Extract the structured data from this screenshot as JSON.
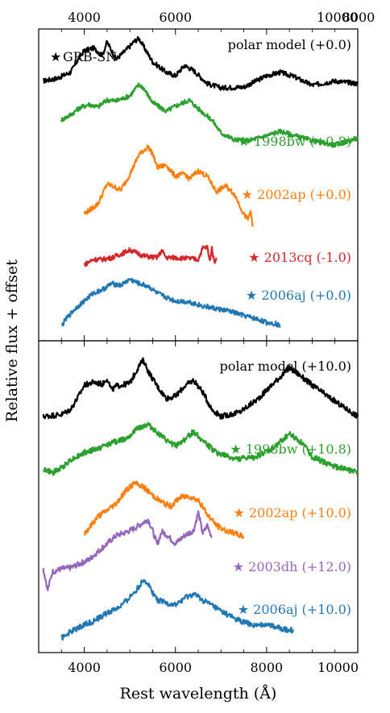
{
  "chart_data": {
    "type": "line",
    "xlabel": "Rest wavelength (Å)",
    "ylabel": "Relative flux + offset",
    "xlim": [
      3000,
      10000
    ],
    "xticks": [
      4000,
      6000,
      8000,
      10000
    ],
    "top_axis_ticks": true,
    "grid": false,
    "legend": {
      "text": "GRB-SN",
      "marker": "★",
      "placement": "top-left"
    },
    "panels": [
      {
        "position": "top",
        "series": [
          {
            "name": "polar model (+0.0)",
            "color": "#000000",
            "x": [
              3100,
              3400,
              3700,
              3900,
              4000,
              4200,
              4400,
              4500,
              4700,
              5000,
              5100,
              5200,
              5300,
              5500,
              5800,
              6000,
              6200,
              6400,
              6700,
              7000,
              7500,
              8000,
              8300,
              8600,
              9000,
              9500,
              10000
            ],
            "y": [
              0.0,
              0.3,
              1.0,
              2.8,
              3.5,
              3.8,
              3.0,
              4.5,
              2.5,
              4.0,
              4.6,
              4.9,
              4.0,
              2.2,
              1.0,
              0.6,
              1.8,
              1.2,
              -0.3,
              -0.8,
              -0.7,
              0.6,
              1.0,
              0.5,
              -0.5,
              0.0,
              -0.3
            ]
          },
          {
            "name": "1998bw (+0.8)",
            "color": "#2ca02c",
            "x": [
              3500,
              3700,
              3900,
              4100,
              4300,
              4500,
              4700,
              5000,
              5200,
              5300,
              5500,
              5800,
              6000,
              6300,
              6500,
              6800,
              7000,
              7300,
              7600,
              8000,
              8300,
              8600,
              9000,
              9500,
              10000
            ],
            "y": [
              -4.5,
              -3.9,
              -3.1,
              -2.7,
              -3.0,
              -2.2,
              -2.3,
              -1.7,
              -0.4,
              -0.8,
              -2.5,
              -3.5,
              -2.9,
              -2.2,
              -3.2,
              -4.5,
              -6.0,
              -6.8,
              -6.9,
              -6.3,
              -5.8,
              -6.3,
              -6.9,
              -7.4,
              -6.6
            ]
          },
          {
            "name": "2002ap (+0.0)",
            "color": "#ff7f0e",
            "x": [
              4000,
              4150,
              4300,
              4500,
              4600,
              4800,
              5000,
              5200,
              5400,
              5500,
              5600,
              5800,
              5900,
              6000,
              6200,
              6300,
              6500,
              6700,
              6900,
              7100,
              7300,
              7500,
              7600,
              7650,
              7700
            ],
            "y": [
              -15.3,
              -14.8,
              -14.2,
              -11.9,
              -12.1,
              -12.6,
              -10.8,
              -8.5,
              -7.6,
              -8.4,
              -10.0,
              -9.7,
              -10.4,
              -11.0,
              -10.7,
              -11.3,
              -10.4,
              -11.0,
              -12.8,
              -12.1,
              -13.1,
              -15.4,
              -16.0,
              -15.0,
              -16.8
            ]
          },
          {
            "name": "2013cq (-1.0)",
            "color": "#d62728",
            "x": [
              4000,
              4200,
              4400,
              4600,
              4800,
              5000,
              5300,
              5600,
              5700,
              5800,
              6000,
              6300,
              6500,
              6600,
              6700,
              6750,
              6800,
              6850,
              6900
            ],
            "y": [
              -21.2,
              -20.6,
              -20.6,
              -20.4,
              -20.0,
              -19.5,
              -20.2,
              -20.4,
              -19.6,
              -20.4,
              -20.4,
              -20.5,
              -20.6,
              -19.3,
              -19.2,
              -20.8,
              -19.3,
              -20.9,
              -20.4
            ]
          },
          {
            "name": "2006aj (+0.0)",
            "color": "#1f77b4",
            "x": [
              3500,
              3600,
              3800,
              4000,
              4200,
              4400,
              4600,
              4800,
              5000,
              5200,
              5400,
              5600,
              5800,
              6000,
              6300,
              6600,
              6900,
              7200,
              7500,
              7800,
              8000,
              8200,
              8300
            ],
            "y": [
              -28.3,
              -27.5,
              -26.3,
              -25.4,
              -24.5,
              -24.1,
              -23.4,
              -23.6,
              -22.9,
              -23.4,
              -23.7,
              -24.5,
              -25.0,
              -25.4,
              -25.5,
              -26.0,
              -26.3,
              -26.6,
              -27.1,
              -27.5,
              -27.9,
              -28.0,
              -28.3
            ]
          }
        ]
      },
      {
        "position": "bottom",
        "series": [
          {
            "name": "polar model (+10.0)",
            "color": "#000000",
            "x": [
              3100,
              3500,
              3700,
              3900,
              4000,
              4200,
              4400,
              4500,
              4600,
              4700,
              5000,
              5200,
              5300,
              5400,
              5600,
              5800,
              6000,
              6200,
              6400,
              6600,
              6800,
              7000,
              7400,
              7800,
              8200,
              8500,
              8700,
              9000,
              9400,
              10000
            ],
            "y": [
              0.0,
              0.2,
              0.7,
              2.2,
              3.1,
              3.4,
              3.2,
              3.8,
              2.6,
              3.0,
              3.3,
              5.0,
              5.6,
              4.5,
              3.0,
              1.8,
              2.0,
              3.0,
              3.6,
              2.4,
              0.7,
              0.0,
              0.4,
              1.7,
              3.5,
              4.8,
              4.2,
              3.1,
              1.8,
              0.0
            ]
          },
          {
            "name": "1998bw (+10.8)",
            "color": "#2ca02c",
            "x": [
              3100,
              3300,
              3500,
              3700,
              4000,
              4300,
              4600,
              4900,
              5200,
              5400,
              5600,
              5800,
              6000,
              6200,
              6400,
              6600,
              6900,
              7300,
              7700,
              8100,
              8500,
              8800,
              9000,
              9500,
              10000
            ],
            "y": [
              -5.2,
              -5.6,
              -5.1,
              -4.3,
              -3.6,
              -3.2,
              -2.6,
              -2.2,
              -1.1,
              -0.8,
              -1.6,
              -2.4,
              -2.9,
              -2.3,
              -1.5,
              -2.4,
              -3.6,
              -4.2,
              -4.1,
              -3.3,
              -1.7,
              -2.7,
              -4.0,
              -5.0,
              -5.5
            ]
          },
          {
            "name": "2002ap (+10.0)",
            "color": "#ff7f0e",
            "x": [
              4000,
              4150,
              4300,
              4500,
              4700,
              4900,
              5100,
              5300,
              5500,
              5700,
              5900,
              6100,
              6300,
              6500,
              6700,
              6900,
              7100,
              7300,
              7500
            ],
            "y": [
              -11.6,
              -10.8,
              -9.9,
              -9.3,
              -8.6,
              -7.4,
              -6.6,
              -7.0,
              -7.8,
              -8.5,
              -8.9,
              -8.0,
              -7.9,
              -8.3,
              -9.7,
              -10.8,
              -11.3,
              -11.6,
              -11.9
            ]
          },
          {
            "name": "2003dh (+12.0)",
            "color": "#9467bd",
            "x": [
              3100,
              3200,
              3300,
              3500,
              3700,
              3900,
              4100,
              4300,
              4500,
              4700,
              4900,
              5100,
              5300,
              5400,
              5500,
              5600,
              5700,
              5800,
              6000,
              6200,
              6400,
              6500,
              6600,
              6700,
              6800
            ],
            "y": [
              -15.1,
              -17.2,
              -15.4,
              -15.1,
              -15.0,
              -14.6,
              -14.2,
              -13.4,
              -12.6,
              -11.8,
              -11.5,
              -11.1,
              -10.5,
              -10.2,
              -11.3,
              -12.7,
              -11.4,
              -11.7,
              -12.6,
              -11.8,
              -11.3,
              -9.5,
              -11.6,
              -10.8,
              -12.0
            ]
          },
          {
            "name": "2006aj (+10.0)",
            "color": "#1f77b4",
            "x": [
              3500,
              3600,
              3800,
              4000,
              4200,
              4500,
              4800,
              5000,
              5200,
              5300,
              5400,
              5600,
              5800,
              6000,
              6200,
              6400,
              6600,
              6800,
              7000,
              7200,
              7500,
              7800,
              8000,
              8200,
              8400,
              8600
            ],
            "y": [
              -22.0,
              -21.6,
              -21.1,
              -20.6,
              -20.3,
              -19.5,
              -18.8,
              -17.9,
              -16.9,
              -16.1,
              -16.6,
              -18.2,
              -18.5,
              -18.7,
              -18.0,
              -17.6,
              -18.2,
              -18.7,
              -19.3,
              -19.8,
              -20.4,
              -20.8,
              -20.5,
              -20.9,
              -21.1,
              -21.2
            ]
          }
        ]
      }
    ]
  }
}
